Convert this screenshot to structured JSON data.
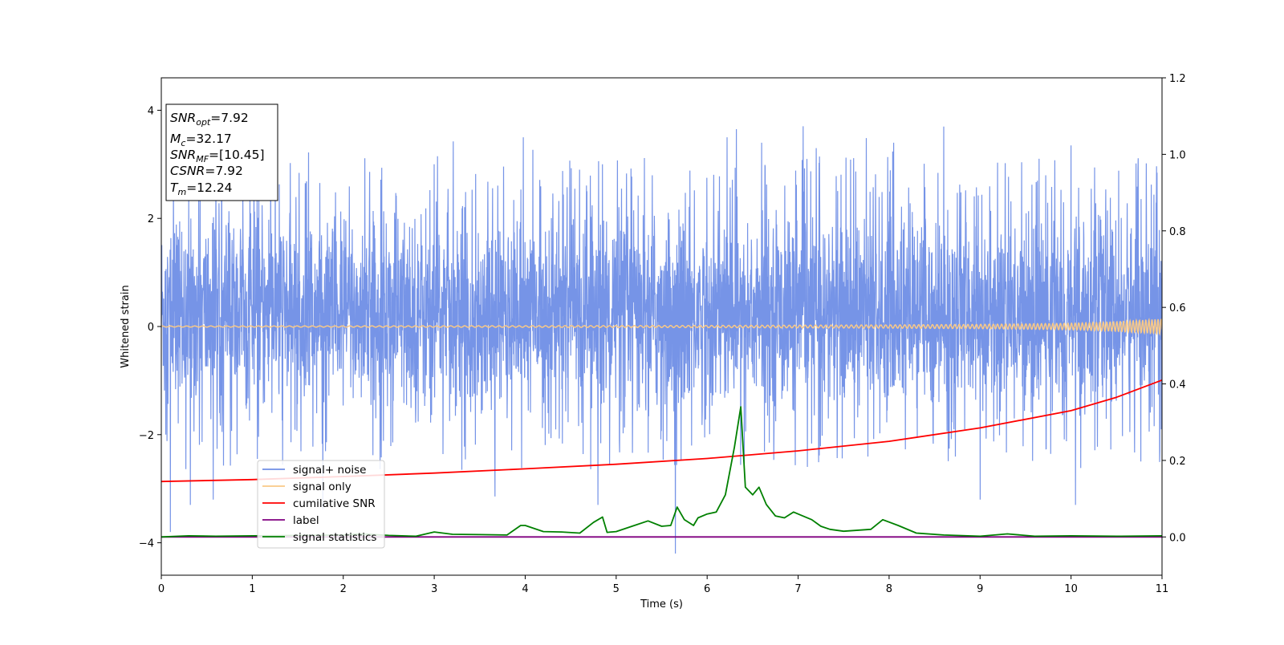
{
  "chart_data": {
    "type": "line",
    "xlabel": "Time (s)",
    "ylabel": "Whitened strain",
    "xlim": [
      0,
      11
    ],
    "ylim": [
      -4.6,
      4.6
    ],
    "y2lim": [
      -0.1,
      1.2
    ],
    "xticks": [
      "0",
      "1",
      "2",
      "3",
      "4",
      "5",
      "6",
      "7",
      "8",
      "9",
      "10",
      "11"
    ],
    "yticks": [
      "4",
      "2",
      "0",
      "−2",
      "−4"
    ],
    "yticks_values": [
      4,
      2,
      0,
      -2,
      -4
    ],
    "y2ticks": [
      "1.2",
      "1.0",
      "0.8",
      "0.6",
      "0.4",
      "0.2",
      "0.0"
    ],
    "y2ticks_values": [
      1.2,
      1.0,
      0.8,
      0.6,
      0.4,
      0.2,
      0.0
    ],
    "grid": false,
    "legend_position": "lower-left",
    "legend": [
      {
        "label": "signal+ noise",
        "color": "#6f8ee6"
      },
      {
        "label": "signal only",
        "color": "#f9c987"
      },
      {
        "label": "cumilative SNR",
        "color": "#ff0000"
      },
      {
        "label": "label",
        "color": "#800080"
      },
      {
        "label": "signal statistics",
        "color": "#008000"
      }
    ],
    "info_box": [
      {
        "main": "SNR",
        "sub": "opt",
        "value": "=7.92"
      },
      {
        "main": "M",
        "sub": "c",
        "value": "=32.17"
      },
      {
        "main": "SNR",
        "sub": "MF",
        "value": "=[10.45]"
      },
      {
        "main": "CSNR",
        "sub": "",
        "value": "=7.92"
      },
      {
        "main": "T",
        "sub": "m",
        "value": "=12.24"
      }
    ],
    "series": [
      {
        "axis": "left",
        "color": "#6f8ee6",
        "noise_band": {
          "typical_min": -1.9,
          "typical_max": 2.4
        },
        "notable_peaks": [
          {
            "x": 0.1,
            "y": -3.8
          },
          {
            "x": 0.32,
            "y": -3.3
          },
          {
            "x": 0.57,
            "y": -3.2
          },
          {
            "x": 1.62,
            "y": 3.22
          },
          {
            "x": 3.0,
            "y": 3.0
          },
          {
            "x": 3.98,
            "y": 3.5
          },
          {
            "x": 4.85,
            "y": 3.0
          },
          {
            "x": 4.8,
            "y": -3.3
          },
          {
            "x": 5.65,
            "y": -4.2
          },
          {
            "x": 6.22,
            "y": 3.5
          },
          {
            "x": 6.32,
            "y": 3.65
          },
          {
            "x": 6.6,
            "y": 3.4
          },
          {
            "x": 7.2,
            "y": 3.3
          },
          {
            "x": 8.05,
            "y": 3.4
          },
          {
            "x": 8.6,
            "y": 3.7
          },
          {
            "x": 9.0,
            "y": -3.2
          },
          {
            "x": 10.0,
            "y": 3.35
          },
          {
            "x": 10.05,
            "y": -3.3
          }
        ]
      },
      {
        "axis": "left",
        "color": "#f9c987",
        "x": [
          0,
          2,
          4,
          6,
          8,
          9,
          10,
          10.5,
          11
        ],
        "amplitude": [
          0.01,
          0.012,
          0.015,
          0.02,
          0.03,
          0.04,
          0.06,
          0.09,
          0.14
        ]
      },
      {
        "axis": "right",
        "color": "#ff0000",
        "x": [
          0,
          1,
          2,
          3,
          4,
          5,
          6,
          7,
          8,
          9,
          10,
          10.5,
          11
        ],
        "y": [
          0.145,
          0.15,
          0.158,
          0.167,
          0.178,
          0.19,
          0.205,
          0.225,
          0.25,
          0.285,
          0.33,
          0.365,
          0.41
        ]
      },
      {
        "axis": "right",
        "color": "#800080",
        "x": [
          0,
          11
        ],
        "y": [
          0.0,
          0.0
        ]
      },
      {
        "axis": "right",
        "color": "#008000",
        "x": [
          0,
          0.3,
          0.6,
          1.0,
          1.5,
          2.0,
          2.2,
          2.5,
          2.8,
          3.0,
          3.2,
          3.5,
          3.8,
          3.95,
          4.0,
          4.2,
          4.4,
          4.6,
          4.75,
          4.85,
          4.9,
          5.0,
          5.2,
          5.35,
          5.5,
          5.6,
          5.67,
          5.75,
          5.85,
          5.9,
          6.0,
          6.1,
          6.2,
          6.3,
          6.37,
          6.42,
          6.5,
          6.57,
          6.65,
          6.75,
          6.85,
          6.95,
          7.05,
          7.15,
          7.25,
          7.35,
          7.5,
          7.8,
          7.93,
          8.1,
          8.3,
          8.6,
          9.0,
          9.3,
          9.6,
          10.0,
          10.5,
          11.0
        ],
        "y": [
          0.0,
          0.003,
          0.002,
          0.003,
          0.004,
          0.005,
          0.008,
          0.004,
          0.002,
          0.013,
          0.007,
          0.006,
          0.005,
          0.03,
          0.03,
          0.014,
          0.013,
          0.01,
          0.038,
          0.052,
          0.012,
          0.014,
          0.03,
          0.042,
          0.028,
          0.03,
          0.078,
          0.045,
          0.03,
          0.05,
          0.06,
          0.065,
          0.11,
          0.235,
          0.34,
          0.13,
          0.11,
          0.13,
          0.085,
          0.055,
          0.05,
          0.065,
          0.055,
          0.045,
          0.028,
          0.02,
          0.015,
          0.02,
          0.045,
          0.03,
          0.01,
          0.005,
          0.002,
          0.008,
          0.002,
          0.003,
          0.002,
          0.003
        ]
      }
    ]
  }
}
